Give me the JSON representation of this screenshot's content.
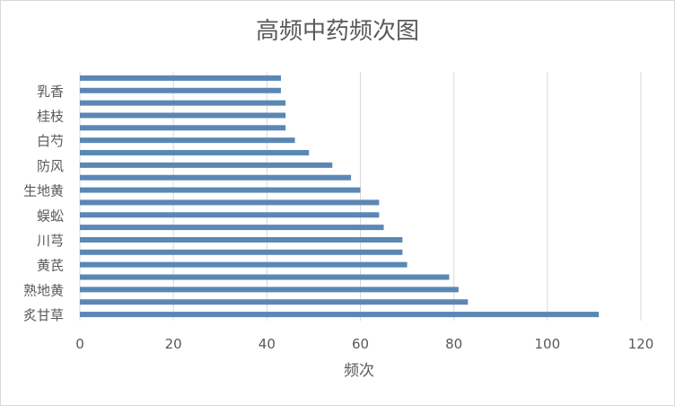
{
  "chart_data": {
    "type": "bar",
    "orientation": "horizontal",
    "title": "高频中药频次图",
    "xlabel": "频次",
    "ylabel": "",
    "xlim": [
      0,
      120
    ],
    "x_ticks": [
      0,
      20,
      40,
      60,
      80,
      100,
      120
    ],
    "grid": "vertical",
    "legend": "none",
    "bar_color": "#5b87b5",
    "categories": [
      "炙甘草",
      "",
      "熟地黄",
      "",
      "黄芪",
      "",
      "川芎",
      "",
      "蜈蚣",
      "",
      "生地黄",
      "",
      "防风",
      "",
      "白芍",
      "",
      "桂枝",
      "",
      "乳香",
      ""
    ],
    "values": [
      111,
      83,
      81,
      79,
      70,
      69,
      69,
      65,
      64,
      64,
      60,
      58,
      54,
      49,
      46,
      44,
      44,
      44,
      43,
      43
    ]
  }
}
